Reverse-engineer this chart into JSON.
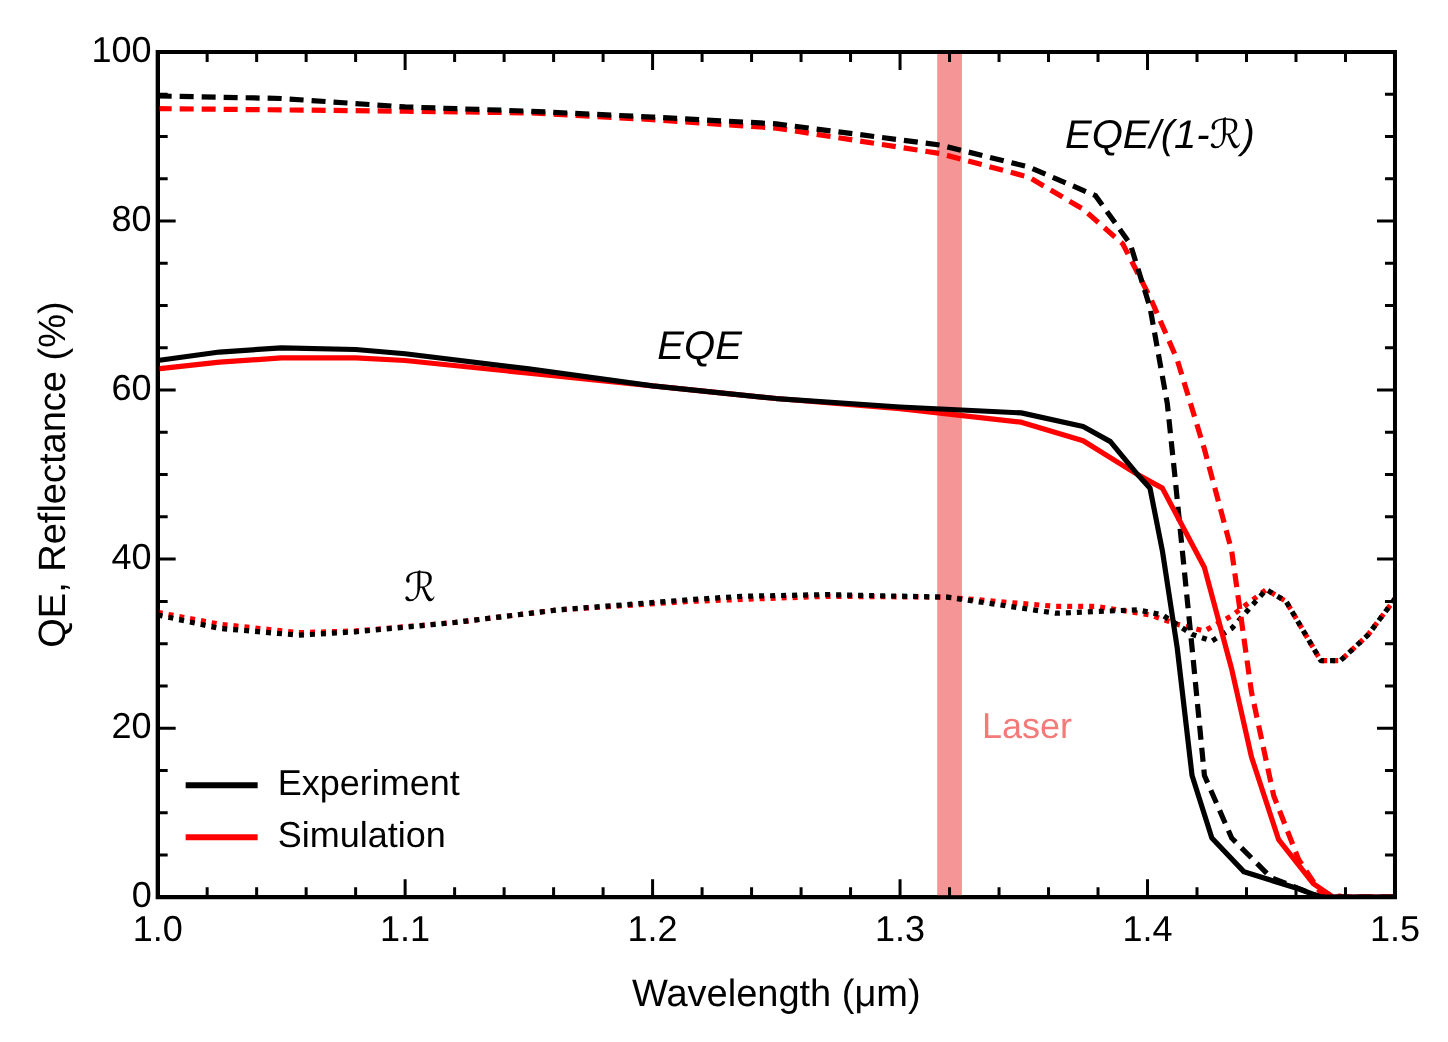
{
  "chart_data": {
    "type": "line",
    "xlabel": "Wavelength (μm)",
    "ylabel": "QE, Reflectance (%)",
    "xlim": [
      1.0,
      1.5
    ],
    "xticks": [
      {
        "value": 1.0,
        "label": "1.0"
      },
      {
        "value": 1.02,
        "label": null
      },
      {
        "value": 1.04,
        "label": null
      },
      {
        "value": 1.06,
        "label": null
      },
      {
        "value": 1.08,
        "label": null
      },
      {
        "value": 1.1,
        "label": "1.1"
      },
      {
        "value": 1.12,
        "label": null
      },
      {
        "value": 1.14,
        "label": null
      },
      {
        "value": 1.16,
        "label": null
      },
      {
        "value": 1.18,
        "label": null
      },
      {
        "value": 1.2,
        "label": "1.2"
      },
      {
        "value": 1.22,
        "label": null
      },
      {
        "value": 1.24,
        "label": null
      },
      {
        "value": 1.26,
        "label": null
      },
      {
        "value": 1.28,
        "label": null
      },
      {
        "value": 1.3,
        "label": "1.3"
      },
      {
        "value": 1.32,
        "label": null
      },
      {
        "value": 1.34,
        "label": null
      },
      {
        "value": 1.36,
        "label": null
      },
      {
        "value": 1.38,
        "label": null
      },
      {
        "value": 1.4,
        "label": "1.4"
      },
      {
        "value": 1.42,
        "label": null
      },
      {
        "value": 1.44,
        "label": null
      },
      {
        "value": 1.46,
        "label": null
      },
      {
        "value": 1.48,
        "label": null
      },
      {
        "value": 1.5,
        "label": "1.5"
      }
    ],
    "ylim": [
      0,
      100
    ],
    "yticks": [
      0,
      {
        "value": 5,
        "label": null
      },
      {
        "value": 10,
        "label": null
      },
      {
        "value": 15,
        "label": null
      },
      20,
      {
        "value": 25,
        "label": null
      },
      {
        "value": 30,
        "label": null
      },
      {
        "value": 35,
        "label": null
      },
      40,
      {
        "value": 45,
        "label": null
      },
      {
        "value": 50,
        "label": null
      },
      {
        "value": 55,
        "label": null
      },
      60,
      {
        "value": 65,
        "label": null
      },
      {
        "value": 70,
        "label": null
      },
      {
        "value": 75,
        "label": null
      },
      80,
      {
        "value": 85,
        "label": null
      },
      {
        "value": 90,
        "label": null
      },
      {
        "value": 95,
        "label": null
      },
      100
    ],
    "grid": false,
    "legend": "bottom left",
    "marker": "none",
    "series": [
      {
        "name": "Experiment",
        "color": "#000000",
        "line_style": "solid",
        "x": [
          1.0,
          1.025,
          1.05,
          1.08,
          1.1,
          1.15,
          1.2,
          1.25,
          1.3,
          1.349,
          1.374,
          1.385,
          1.396,
          1.401,
          1.406,
          1.412,
          1.418,
          1.426,
          1.439,
          1.461,
          1.47,
          1.5
        ],
        "values": [
          63.5,
          64.5,
          65,
          64.8,
          64.3,
          62.5,
          60.5,
          59,
          58,
          57.3,
          55.7,
          53.9,
          50,
          48.4,
          41,
          29.5,
          14.4,
          7,
          3,
          1,
          0,
          0
        ]
      },
      {
        "name": "Simulation",
        "color": "#ff0000",
        "line_style": "solid",
        "x": [
          1.0,
          1.025,
          1.05,
          1.08,
          1.1,
          1.15,
          1.2,
          1.25,
          1.3,
          1.349,
          1.374,
          1.396,
          1.406,
          1.423,
          1.434,
          1.442,
          1.453,
          1.467,
          1.475,
          1.5
        ],
        "values": [
          62.5,
          63.3,
          63.8,
          63.8,
          63.5,
          62,
          60.5,
          59,
          57.8,
          56.2,
          54,
          50,
          48.4,
          39,
          27,
          16.6,
          6.8,
          1.6,
          0,
          0
        ]
      },
      {
        "color": "#000000",
        "line_style": "dashed",
        "x": [
          1.0,
          1.05,
          1.1,
          1.15,
          1.2,
          1.25,
          1.316,
          1.352,
          1.379,
          1.393,
          1.401,
          1.408,
          1.411,
          1.418,
          1.423,
          1.434,
          1.45,
          1.47,
          1.5
        ],
        "values": [
          94.8,
          94.5,
          93.5,
          93,
          92.3,
          91.5,
          89,
          86.4,
          83,
          77.3,
          69.8,
          58.4,
          50,
          29.5,
          14.4,
          7,
          2.3,
          0,
          0
        ]
      },
      {
        "color": "#ff0000",
        "line_style": "dashed",
        "x": [
          1.0,
          1.1,
          1.15,
          1.2,
          1.25,
          1.316,
          1.352,
          1.374,
          1.39,
          1.401,
          1.412,
          1.423,
          1.434,
          1.442,
          1.451,
          1.461,
          1.47,
          1.48,
          1.5
        ],
        "values": [
          93.3,
          93,
          92.8,
          92,
          91,
          88,
          85.2,
          81.4,
          77.3,
          71,
          63.6,
          53,
          41,
          24.3,
          12,
          4.5,
          0.5,
          0,
          0
        ]
      },
      {
        "color": "#000000",
        "line_style": "dotted",
        "x": [
          1.0,
          1.025,
          1.057,
          1.08,
          1.12,
          1.162,
          1.215,
          1.236,
          1.27,
          1.319,
          1.363,
          1.396,
          1.406,
          1.418,
          1.426,
          1.434,
          1.448,
          1.456,
          1.47,
          1.478,
          1.489,
          1.5
        ],
        "values": [
          33.4,
          31.8,
          31,
          31.4,
          32.5,
          34,
          35.2,
          35.6,
          35.8,
          35.5,
          33.6,
          34,
          33.4,
          31.1,
          30.3,
          31.8,
          36.4,
          35,
          28,
          28,
          31,
          35.3
        ]
      },
      {
        "color": "#ff0000",
        "line_style": "dotted",
        "x": [
          1.0,
          1.025,
          1.057,
          1.08,
          1.12,
          1.162,
          1.215,
          1.27,
          1.319,
          1.363,
          1.379,
          1.401,
          1.412,
          1.423,
          1.434,
          1.448,
          1.456,
          1.47,
          1.478,
          1.489,
          1.5
        ],
        "values": [
          33.7,
          32.3,
          31.3,
          31.5,
          32.5,
          34,
          35,
          35.6,
          35.5,
          34.4,
          34.4,
          33.4,
          32.3,
          31.5,
          33.3,
          36.4,
          35,
          28,
          28,
          31,
          35.3
        ]
      }
    ],
    "bands": [
      {
        "axis": "x",
        "from": 1.315,
        "to": 1.325,
        "label": "Laser",
        "color": "#f47a7a"
      }
    ],
    "annotations": [
      "EQE",
      "EQE/(1-ℛ)",
      "ℛ"
    ]
  }
}
